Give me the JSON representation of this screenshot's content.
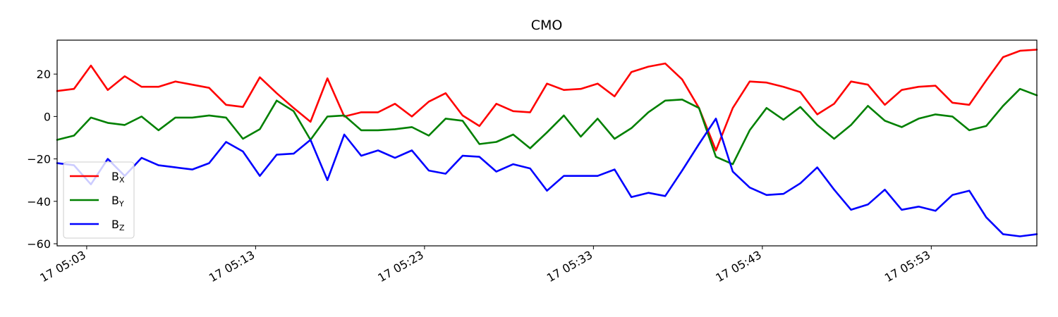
{
  "chart_data": {
    "type": "line",
    "title": "CMO",
    "xlabel": "",
    "ylabel": "",
    "x_tick_labels": [
      "17 05:03",
      "17 05:13",
      "17 05:23",
      "17 05:33",
      "17 05:43",
      "17 05:53"
    ],
    "x_tick_minutes": [
      3,
      13,
      23,
      33,
      43,
      53
    ],
    "x_start_minute": 1.25,
    "x_step_minutes": 1,
    "xlim_minutes": [
      1.25,
      59.25
    ],
    "ylim": [
      -61,
      36
    ],
    "y_ticks": [
      20,
      0,
      -20,
      -40,
      -60
    ],
    "grid": false,
    "legend_position": "lower-left",
    "series": [
      {
        "base": "B",
        "sub": "X",
        "color": "#ff0000",
        "values": [
          12,
          13,
          24,
          12.5,
          19,
          14,
          14,
          16.5,
          15,
          13.5,
          5.5,
          4.5,
          18.5,
          11,
          4,
          -2.5,
          18,
          0,
          2,
          2,
          6,
          0,
          7,
          11,
          0.5,
          -4.5,
          6,
          2.5,
          2,
          15.5,
          12.5,
          13,
          15.5,
          9.5,
          21,
          23.5,
          25,
          17.5,
          4,
          -16,
          4,
          16.5,
          16,
          14,
          11.5,
          1,
          6,
          16.5,
          15,
          5.5,
          12.5,
          14,
          14.5,
          6.5,
          5.5,
          17,
          28,
          31,
          31.5
        ]
      },
      {
        "base": "B",
        "sub": "Y",
        "color": "#008000",
        "values": [
          -11,
          -9,
          -0.5,
          -3,
          -4,
          0,
          -6.5,
          -0.5,
          -0.5,
          0.5,
          -0.5,
          -10.5,
          -6,
          7.5,
          2.5,
          -11,
          0,
          0.5,
          -6.5,
          -6.5,
          -6,
          -5,
          -9,
          -1,
          -2,
          -13,
          -12,
          -8.5,
          -15,
          -7.5,
          0.5,
          -9.5,
          -1,
          -10.5,
          -5.5,
          2,
          7.5,
          8,
          4,
          -19,
          -22.5,
          -6.5,
          4,
          -1.5,
          4.5,
          -4,
          -10.5,
          -4,
          5,
          -2,
          -5,
          -1,
          1,
          0,
          -6.5,
          -4.5,
          5,
          13,
          10
        ]
      },
      {
        "base": "B",
        "sub": "Z",
        "color": "#0000ff",
        "values": [
          -22,
          -23,
          -32,
          -20,
          -28,
          -19.5,
          -23,
          -24,
          -25,
          -22,
          -12,
          -16.5,
          -28,
          -18,
          -17.5,
          -11,
          -30,
          -8.5,
          -18.5,
          -16,
          -19.5,
          -16,
          -25.5,
          -27,
          -18.5,
          -19,
          -26,
          -22.5,
          -24.5,
          -35,
          -28,
          -28,
          -28,
          -25,
          -38,
          -36,
          -37.5,
          -25.5,
          -13,
          -1,
          -26,
          -33.5,
          -37,
          -36.5,
          -31.5,
          -24,
          -34.5,
          -44,
          -41.5,
          -34.5,
          -44,
          -42.5,
          -44.5,
          -37,
          -35,
          -47.5,
          -55.5,
          -56.5,
          -55.5
        ]
      }
    ]
  }
}
